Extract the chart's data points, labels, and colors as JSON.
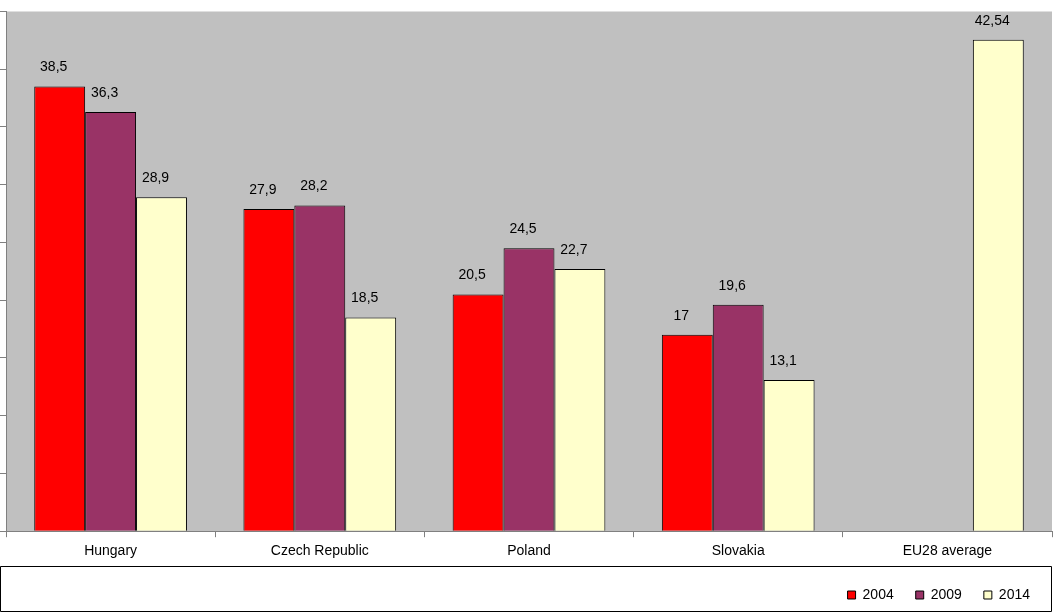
{
  "chart_data": {
    "type": "bar",
    "categories": [
      "Hungary",
      "Czech Republic",
      "Poland",
      "Slovakia",
      "EU28 average"
    ],
    "series": [
      {
        "name": "2004",
        "color": "#ff0000",
        "values": [
          38.5,
          27.9,
          20.5,
          17,
          null
        ],
        "value_labels": [
          "38,5",
          "27,9",
          "20,5",
          "17",
          null
        ]
      },
      {
        "name": "2009",
        "color": "#993366",
        "values": [
          36.3,
          28.2,
          24.5,
          19.6,
          null
        ],
        "value_labels": [
          "36,3",
          "28,2",
          "24,5",
          "19,6",
          null
        ]
      },
      {
        "name": "2014",
        "color": "#ffffcc",
        "values": [
          28.9,
          18.5,
          22.7,
          13.1,
          42.54
        ],
        "value_labels": [
          "28,9",
          "18,5",
          "22,7",
          "13,1",
          "42,54"
        ]
      }
    ],
    "ylim": [
      0,
      45
    ],
    "yticks": [
      {
        "value": 0,
        "label": null
      },
      {
        "value": 5,
        "label": null
      },
      {
        "value": 10,
        "label": null
      },
      {
        "value": 15,
        "label": null
      },
      {
        "value": 20,
        "label": null
      },
      {
        "value": 25,
        "label": null
      },
      {
        "value": 30,
        "label": null
      },
      {
        "value": 35,
        "label": null
      },
      {
        "value": 40,
        "label": null
      },
      {
        "value": 45,
        "label": null
      }
    ],
    "tick_labels": "x",
    "grid": false,
    "legend": "bottom right"
  }
}
